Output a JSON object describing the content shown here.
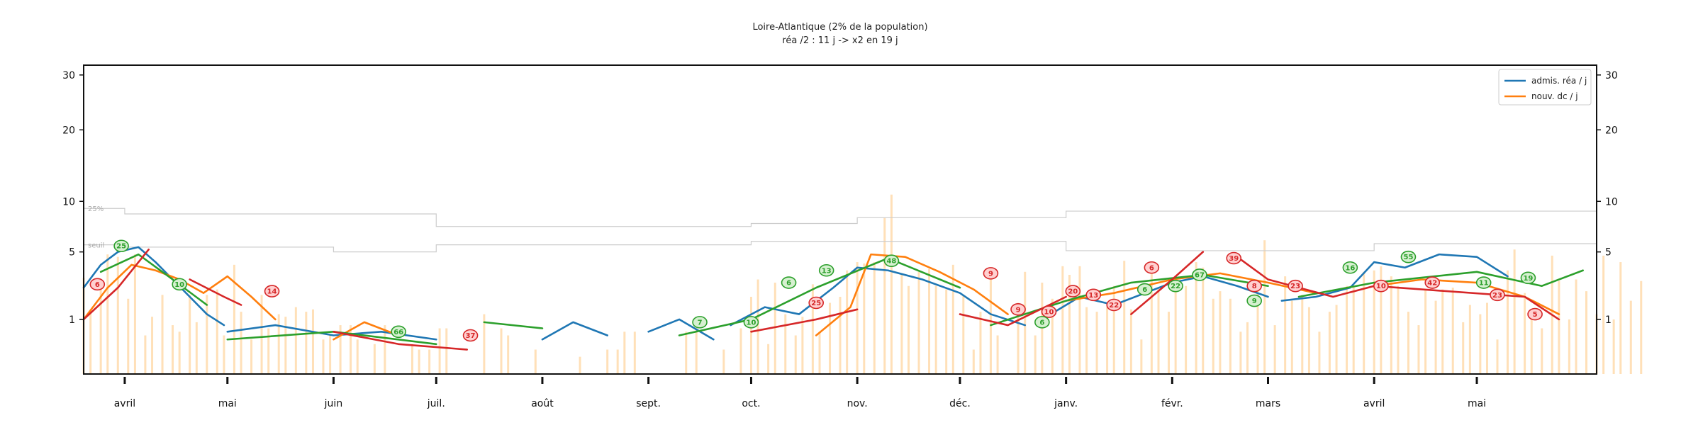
{
  "chart_data": {
    "type": "line",
    "title": "Loire-Atlantique (2% de la population)",
    "subtitle": "réa /2 : 11 j -> x2 en 19 j",
    "xlabel": "",
    "ylabel": "",
    "yscale": "sqrt",
    "ylim": [
      0,
      32
    ],
    "y_ticks": [
      1,
      5,
      10,
      20,
      30
    ],
    "y_tick_labels": [
      "1",
      "5",
      "10",
      "20",
      "30"
    ],
    "xlim": [
      "2020-03-20",
      "2021-06-05"
    ],
    "x_ticks": [
      "2020-04-01",
      "2020-05-01",
      "2020-06-01",
      "2020-07-01",
      "2020-08-01",
      "2020-09-01",
      "2020-10-01",
      "2020-11-01",
      "2020-12-01",
      "2021-01-01",
      "2021-02-01",
      "2021-03-01",
      "2021-04-01",
      "2021-05-01"
    ],
    "x_tick_labels": [
      "avril",
      "mai",
      "juin",
      "juil.",
      "août",
      "sept.",
      "oct.",
      "nov.",
      "déc.",
      "janv.",
      "févr.",
      "mars",
      "avril",
      "mai"
    ],
    "grid": false,
    "legend_position": "top-right",
    "reference_lines": [
      {
        "label": "25%",
        "color": "#cccccc",
        "x": [
          "2020-03-20",
          "2020-04-01",
          "2020-07-01",
          "2020-10-01",
          "2020-11-01",
          "2021-01-01",
          "2021-04-01",
          "2021-06-05"
        ],
        "y": [
          9.2,
          8.6,
          7.3,
          7.6,
          8.2,
          8.9,
          8.9,
          8.3
        ]
      },
      {
        "label": "seuil",
        "color": "#cccccc",
        "x": [
          "2020-03-20",
          "2020-04-01",
          "2020-06-01",
          "2020-07-01",
          "2020-09-01",
          "2020-10-01",
          "2020-11-01",
          "2021-01-01",
          "2021-04-01",
          "2021-06-05"
        ],
        "y": [
          5.6,
          5.4,
          5.0,
          5.6,
          5.6,
          5.9,
          5.9,
          5.1,
          5.7,
          5.0
        ]
      }
    ],
    "series": [
      {
        "name": "admis. réa / j",
        "color": "#1f77b4",
        "segments": [
          {
            "x": [
              "2020-03-20",
              "2020-03-25",
              "2020-03-30",
              "2020-04-05",
              "2020-04-10",
              "2020-04-15",
              "2020-04-20",
              "2020-04-25",
              "2020-04-30"
            ],
            "y": [
              2.5,
              4.0,
              5.0,
              5.4,
              4.2,
              3.0,
              2.0,
              1.2,
              0.8
            ]
          },
          {
            "x": [
              "2020-05-01",
              "2020-05-15",
              "2020-06-01",
              "2020-06-15",
              "2020-07-01"
            ],
            "y": [
              0.6,
              0.8,
              0.5,
              0.6,
              0.4
            ]
          },
          {
            "x": [
              "2020-08-01",
              "2020-08-10",
              "2020-08-20"
            ],
            "y": [
              0.4,
              0.9,
              0.5
            ]
          },
          {
            "x": [
              "2020-09-01",
              "2020-09-10",
              "2020-09-20"
            ],
            "y": [
              0.6,
              1.0,
              0.4
            ]
          },
          {
            "x": [
              "2020-09-25",
              "2020-10-05",
              "2020-10-15",
              "2020-10-25",
              "2020-11-01",
              "2020-11-10",
              "2020-11-20",
              "2020-12-01",
              "2020-12-10",
              "2020-12-20"
            ],
            "y": [
              0.8,
              1.5,
              1.2,
              2.5,
              3.8,
              3.6,
              3.0,
              2.2,
              1.2,
              0.8
            ]
          },
          {
            "x": [
              "2020-12-25",
              "2021-01-05",
              "2021-01-15",
              "2021-02-01",
              "2021-02-10",
              "2021-02-20",
              "2021-03-01"
            ],
            "y": [
              1.0,
              2.0,
              1.6,
              2.8,
              3.2,
              2.6,
              2.0
            ]
          },
          {
            "x": [
              "2021-03-05",
              "2021-03-15",
              "2021-03-25",
              "2021-04-01",
              "2021-04-10",
              "2021-04-20",
              "2021-05-01",
              "2021-05-10"
            ],
            "y": [
              1.8,
              2.0,
              2.5,
              4.2,
              3.8,
              4.8,
              4.6,
              3.2
            ]
          }
        ]
      },
      {
        "name": "nouv. dc / j",
        "color": "#ff7f0e",
        "segments": [
          {
            "x": [
              "2020-03-20",
              "2020-03-27",
              "2020-04-03",
              "2020-04-10",
              "2020-04-17",
              "2020-04-24",
              "2020-05-01",
              "2020-05-08",
              "2020-05-15"
            ],
            "y": [
              1.0,
              2.5,
              4.0,
              3.6,
              3.0,
              2.2,
              3.2,
              2.0,
              1.0
            ]
          },
          {
            "x": [
              "2020-06-01",
              "2020-06-10",
              "2020-06-20"
            ],
            "y": [
              0.4,
              0.9,
              0.5
            ]
          },
          {
            "x": [
              "2020-10-20",
              "2020-10-30",
              "2020-11-05",
              "2020-11-15",
              "2020-11-25",
              "2020-12-05",
              "2020-12-15"
            ],
            "y": [
              0.5,
              1.5,
              4.8,
              4.6,
              3.5,
              2.4,
              1.2
            ]
          },
          {
            "x": [
              "2021-01-01",
              "2021-01-15",
              "2021-02-01",
              "2021-02-15",
              "2021-03-01",
              "2021-03-15"
            ],
            "y": [
              1.8,
              2.2,
              3.0,
              3.4,
              2.8,
              2.2
            ]
          },
          {
            "x": [
              "2021-04-01",
              "2021-04-15",
              "2021-05-01",
              "2021-05-15",
              "2021-05-25"
            ],
            "y": [
              2.6,
              3.0,
              2.8,
              2.0,
              1.2
            ]
          }
        ]
      },
      {
        "color": "#2ca02c",
        "segments": [
          {
            "x": [
              "2020-03-25",
              "2020-04-05",
              "2020-04-15",
              "2020-04-25"
            ],
            "y": [
              3.5,
              4.8,
              3.0,
              1.6
            ]
          },
          {
            "x": [
              "2020-05-01",
              "2020-06-01",
              "2020-07-01"
            ],
            "y": [
              0.4,
              0.6,
              0.3
            ]
          },
          {
            "x": [
              "2020-07-15",
              "2020-08-01"
            ],
            "y": [
              0.9,
              0.7
            ]
          },
          {
            "x": [
              "2020-09-10",
              "2020-10-01",
              "2020-10-20",
              "2020-11-10",
              "2020-12-01"
            ],
            "y": [
              0.5,
              1.0,
              2.5,
              4.5,
              2.5
            ]
          },
          {
            "x": [
              "2020-12-10",
              "2021-01-01",
              "2021-01-20",
              "2021-02-10",
              "2021-03-01"
            ],
            "y": [
              0.8,
              1.8,
              2.8,
              3.3,
              2.6
            ]
          },
          {
            "x": [
              "2021-03-10",
              "2021-04-01",
              "2021-05-01",
              "2021-05-20",
              "2021-06-01"
            ],
            "y": [
              2.0,
              2.8,
              3.5,
              2.6,
              3.6
            ]
          }
        ]
      },
      {
        "color": "#d62728",
        "segments": [
          {
            "x": [
              "2020-03-20",
              "2020-03-30",
              "2020-04-08"
            ],
            "y": [
              1.0,
              2.5,
              5.2
            ]
          },
          {
            "x": [
              "2020-04-20",
              "2020-04-30",
              "2020-05-05"
            ],
            "y": [
              3.0,
              2.0,
              1.6
            ]
          },
          {
            "x": [
              "2020-06-01",
              "2020-06-20",
              "2020-07-10"
            ],
            "y": [
              0.6,
              0.3,
              0.2
            ]
          },
          {
            "x": [
              "2020-10-01",
              "2020-10-20",
              "2020-11-01"
            ],
            "y": [
              0.6,
              1.0,
              1.4
            ]
          },
          {
            "x": [
              "2020-12-01",
              "2020-12-15",
              "2021-01-01"
            ],
            "y": [
              1.2,
              0.8,
              2.0
            ]
          },
          {
            "x": [
              "2021-01-20",
              "2021-02-01",
              "2021-02-10"
            ],
            "y": [
              1.2,
              3.0,
              5.0
            ]
          },
          {
            "x": [
              "2021-02-20",
              "2021-03-01",
              "2021-03-20",
              "2021-04-01",
              "2021-04-15",
              "2021-05-15",
              "2021-05-25"
            ],
            "y": [
              4.6,
              3.0,
              2.0,
              2.6,
              2.4,
              2.0,
              1.0
            ]
          }
        ]
      }
    ],
    "background_bars": {
      "color": "#ffe0b8",
      "base_date": "2020-03-20",
      "values": [
        3.1,
        1.3,
        2.8,
        4.8,
        4.6,
        1.9,
        4.8,
        0.5,
        1.1,
        2.1,
        0.8,
        0.6,
        2.1,
        0.9,
        2.1,
        2.4,
        0.5,
        4.0,
        1.3,
        0.4,
        2.1,
        0.7,
        1.2,
        1.1,
        1.5,
        1.3,
        1.4,
        0.4,
        0.5,
        0.8,
        0.8,
        0.4,
        0.0,
        0.3,
        0.8,
        0.0,
        0.0,
        0.3,
        0.2,
        0.2,
        0.7,
        0.7,
        0.0,
        0.0,
        0.0,
        1.2,
        0.0,
        0.7,
        0.5,
        0.0,
        0.0,
        0.2,
        0.0,
        0.0,
        0.0,
        0.0,
        0.1,
        0.0,
        0.0,
        0.2,
        0.2,
        0.6,
        0.6,
        0.0,
        0.0,
        0.0,
        0.0,
        0.0,
        0.6,
        0.9,
        0.0,
        0.0,
        0.2,
        0.0,
        0.7,
        2.0,
        3.0,
        0.3,
        2.8,
        1.2,
        0.5,
        1.1,
        2.7,
        0.6,
        1.7,
        2.0,
        3.6,
        4.2,
        4.1,
        4.2,
        8.2,
        10.8,
        3.3,
        2.6,
        3.5,
        3.7,
        2.6,
        2.4,
        4.0,
        2.1,
        0.2,
        1.3,
        3.0,
        0.5,
        0.0,
        1.7,
        3.5,
        0.5,
        2.8,
        1.9,
        3.9,
        3.3,
        3.9,
        1.5,
        1.3,
        1.5,
        2.6,
        4.3,
        1.4,
        0.4,
        3.4,
        2.5,
        1.3,
        2.9,
        2.6,
        4.2,
        3.8,
        1.9,
        2.3,
        1.9,
        0.6,
        0.9,
        2.6,
        6.0,
        0.8,
        3.2,
        1.8,
        2.1,
        1.5,
        0.6,
        1.3,
        1.6,
        2.6,
        2.6,
        3.5,
        3.6,
        3.9,
        3.2,
        2.6,
        1.3,
        0.8,
        2.4,
        1.8,
        2.4,
        2.5,
        0.9,
        1.6,
        1.2,
        1.7,
        0.4,
        3.6,
        5.2,
        2.2,
        1.1,
        0.7,
        4.7,
        2.9,
        1.0,
        3.0,
        2.3,
        1.2,
        4.7,
        1.0,
        4.2,
        1.8,
        2.9
      ]
    },
    "annotations": [
      {
        "text": "25",
        "x": "2020-03-31",
        "y": 5.5,
        "color": "#2ca02c",
        "fill": "#d6f0d0"
      },
      {
        "text": "6",
        "x": "2020-03-24",
        "y": 2.7,
        "color": "#d62728",
        "fill": "#ffd0d0"
      },
      {
        "text": "10",
        "x": "2020-04-17",
        "y": 2.7,
        "color": "#2ca02c",
        "fill": "#d6f0d0"
      },
      {
        "text": "14",
        "x": "2020-05-14",
        "y": 2.3,
        "color": "#d62728",
        "fill": "#ffd0d0"
      },
      {
        "text": "66",
        "x": "2020-06-20",
        "y": 0.6,
        "color": "#2ca02c",
        "fill": "#d6f0d0"
      },
      {
        "text": "37",
        "x": "2020-07-11",
        "y": 0.5,
        "color": "#d62728",
        "fill": "#ffd0d0"
      },
      {
        "text": "7",
        "x": "2020-09-16",
        "y": 0.9,
        "color": "#2ca02c",
        "fill": "#d6f0d0"
      },
      {
        "text": "10",
        "x": "2020-10-01",
        "y": 0.9,
        "color": "#2ca02c",
        "fill": "#d6f0d0"
      },
      {
        "text": "6",
        "x": "2020-10-12",
        "y": 2.8,
        "color": "#2ca02c",
        "fill": "#d6f0d0"
      },
      {
        "text": "25",
        "x": "2020-10-20",
        "y": 1.7,
        "color": "#d62728",
        "fill": "#ffd0d0"
      },
      {
        "text": "13",
        "x": "2020-10-23",
        "y": 3.6,
        "color": "#2ca02c",
        "fill": "#d6f0d0"
      },
      {
        "text": "48",
        "x": "2020-11-11",
        "y": 4.3,
        "color": "#2ca02c",
        "fill": "#d6f0d0"
      },
      {
        "text": "9",
        "x": "2020-12-10",
        "y": 3.4,
        "color": "#d62728",
        "fill": "#ffd0d0"
      },
      {
        "text": "9",
        "x": "2020-12-18",
        "y": 1.4,
        "color": "#d62728",
        "fill": "#ffd0d0"
      },
      {
        "text": "10",
        "x": "2020-12-27",
        "y": 1.3,
        "color": "#d62728",
        "fill": "#ffd0d0"
      },
      {
        "text": "6",
        "x": "2020-12-25",
        "y": 0.9,
        "color": "#2ca02c",
        "fill": "#d6f0d0"
      },
      {
        "text": "20",
        "x": "2021-01-03",
        "y": 2.3,
        "color": "#d62728",
        "fill": "#ffd0d0"
      },
      {
        "text": "13",
        "x": "2021-01-09",
        "y": 2.1,
        "color": "#d62728",
        "fill": "#ffd0d0"
      },
      {
        "text": "22",
        "x": "2021-01-15",
        "y": 1.6,
        "color": "#d62728",
        "fill": "#ffd0d0"
      },
      {
        "text": "6",
        "x": "2021-01-24",
        "y": 2.4,
        "color": "#2ca02c",
        "fill": "#d6f0d0"
      },
      {
        "text": "6",
        "x": "2021-01-26",
        "y": 3.8,
        "color": "#d62728",
        "fill": "#ffd0d0"
      },
      {
        "text": "22",
        "x": "2021-02-02",
        "y": 2.6,
        "color": "#2ca02c",
        "fill": "#d6f0d0"
      },
      {
        "text": "67",
        "x": "2021-02-09",
        "y": 3.3,
        "color": "#2ca02c",
        "fill": "#d6f0d0"
      },
      {
        "text": "39",
        "x": "2021-02-19",
        "y": 4.5,
        "color": "#d62728",
        "fill": "#ffd0d0"
      },
      {
        "text": "8",
        "x": "2021-02-25",
        "y": 2.6,
        "color": "#d62728",
        "fill": "#ffd0d0"
      },
      {
        "text": "9",
        "x": "2021-02-25",
        "y": 1.8,
        "color": "#2ca02c",
        "fill": "#d6f0d0"
      },
      {
        "text": "23",
        "x": "2021-03-09",
        "y": 2.6,
        "color": "#d62728",
        "fill": "#ffd0d0"
      },
      {
        "text": "16",
        "x": "2021-03-25",
        "y": 3.8,
        "color": "#2ca02c",
        "fill": "#d6f0d0"
      },
      {
        "text": "10",
        "x": "2021-04-03",
        "y": 2.6,
        "color": "#d62728",
        "fill": "#ffd0d0"
      },
      {
        "text": "55",
        "x": "2021-04-11",
        "y": 4.6,
        "color": "#2ca02c",
        "fill": "#d6f0d0"
      },
      {
        "text": "42",
        "x": "2021-04-18",
        "y": 2.8,
        "color": "#d62728",
        "fill": "#ffd0d0"
      },
      {
        "text": "11",
        "x": "2021-05-03",
        "y": 2.8,
        "color": "#2ca02c",
        "fill": "#d6f0d0"
      },
      {
        "text": "23",
        "x": "2021-05-07",
        "y": 2.1,
        "color": "#d62728",
        "fill": "#ffd0d0"
      },
      {
        "text": "19",
        "x": "2021-05-16",
        "y": 3.1,
        "color": "#2ca02c",
        "fill": "#d6f0d0"
      },
      {
        "text": "5",
        "x": "2021-05-18",
        "y": 1.2,
        "color": "#d62728",
        "fill": "#ffd0d0"
      }
    ]
  }
}
